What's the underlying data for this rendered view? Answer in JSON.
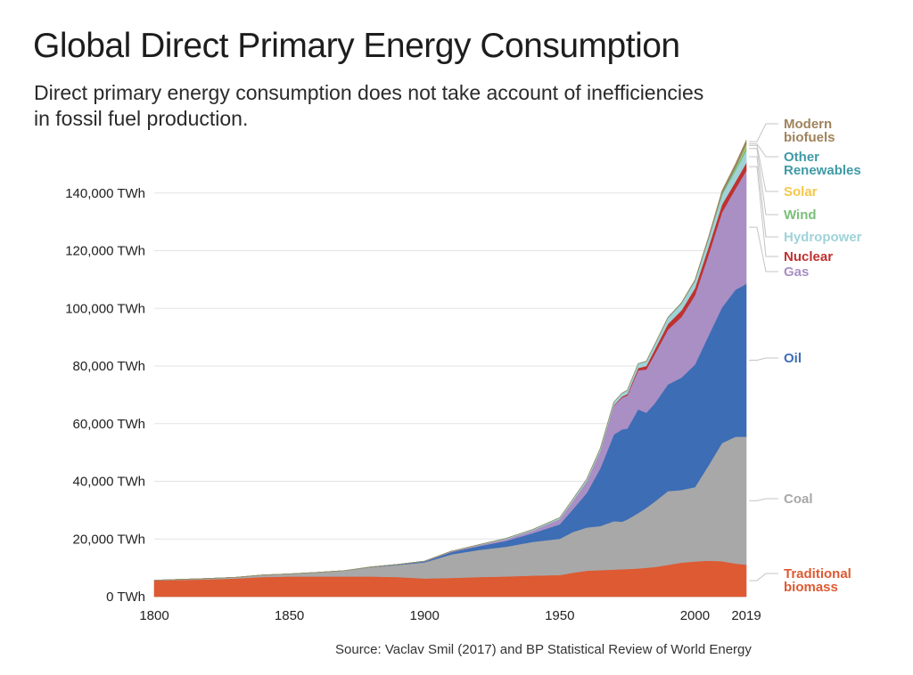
{
  "header": {
    "title": "Global Direct Primary Energy Consumption",
    "subtitle": "Direct primary energy consumption does not take account of inefficiencies in fossil fuel production."
  },
  "footer": {
    "source": "Source: Vaclav Smil (2017) and BP Statistical Review of World Energy"
  },
  "chart_data": {
    "type": "area",
    "stacked": true,
    "title": "Global Direct Primary Energy Consumption",
    "subtitle": "Direct primary energy consumption does not take account of inefficiencies in fossil fuel production.",
    "xlabel": "",
    "ylabel": "",
    "xlim": [
      1800,
      2019
    ],
    "ylim": [
      0,
      160000
    ],
    "x_ticks": [
      1800,
      1850,
      1900,
      1950,
      2000,
      2019
    ],
    "y_ticks": [
      0,
      20000,
      40000,
      60000,
      80000,
      100000,
      120000,
      140000
    ],
    "y_tick_labels": [
      "0 TWh",
      "20,000 TWh",
      "40,000 TWh",
      "60,000 TWh",
      "80,000 TWh",
      "100,000 TWh",
      "120,000 TWh",
      "140,000 TWh"
    ],
    "grid": true,
    "legend": "right, inline labels",
    "x": [
      1800,
      1810,
      1820,
      1830,
      1840,
      1850,
      1860,
      1870,
      1880,
      1890,
      1900,
      1910,
      1920,
      1930,
      1940,
      1950,
      1955,
      1960,
      1965,
      1970,
      1973,
      1975,
      1979,
      1982,
      1985,
      1990,
      1995,
      2000,
      2005,
      2010,
      2015,
      2019
    ],
    "series": [
      {
        "name": "Traditional biomass",
        "color": "#dd5a33",
        "values": [
          5600,
          5800,
          6000,
          6300,
          6800,
          7000,
          7000,
          7000,
          7000,
          6800,
          6300,
          6500,
          6800,
          7000,
          7300,
          7500,
          8300,
          9000,
          9200,
          9400,
          9500,
          9600,
          9800,
          10000,
          10300,
          11000,
          11800,
          12200,
          12500,
          12300,
          11500,
          11100
        ]
      },
      {
        "name": "Coal",
        "color": "#a8a8a8",
        "values": [
          100,
          200,
          300,
          400,
          700,
          900,
          1400,
          2000,
          3200,
          4200,
          5600,
          8200,
          9400,
          10300,
          11700,
          12600,
          14200,
          15000,
          15300,
          16800,
          16500,
          17200,
          19200,
          20800,
          22600,
          25600,
          25200,
          25800,
          33000,
          41000,
          44000,
          44400
        ]
      },
      {
        "name": "Oil",
        "color": "#3d6db5",
        "values": [
          0,
          0,
          0,
          0,
          0,
          0,
          0,
          0,
          100,
          200,
          300,
          800,
          1300,
          2000,
          3000,
          5000,
          8000,
          12000,
          20000,
          30000,
          32000,
          31500,
          36000,
          33000,
          34000,
          37000,
          39000,
          42500,
          45000,
          47000,
          51000,
          53000
        ]
      },
      {
        "name": "Gas",
        "color": "#a98fc4",
        "values": [
          0,
          0,
          0,
          0,
          0,
          0,
          0,
          0,
          0,
          0,
          100,
          200,
          300,
          600,
          900,
          1800,
          2800,
          4000,
          6000,
          10000,
          11000,
          11500,
          13500,
          15000,
          17000,
          19000,
          21000,
          24000,
          28000,
          33000,
          35000,
          39300
        ]
      },
      {
        "name": "Nuclear",
        "color": "#c0312f",
        "values": [
          0,
          0,
          0,
          0,
          0,
          0,
          0,
          0,
          0,
          0,
          0,
          0,
          0,
          0,
          0,
          0,
          0,
          10,
          50,
          200,
          400,
          500,
          800,
          1200,
          1600,
          2000,
          2300,
          2500,
          2700,
          2700,
          2500,
          2700
        ]
      },
      {
        "name": "Hydropower",
        "color": "#9fd3d9",
        "values": [
          0,
          0,
          0,
          0,
          0,
          0,
          0,
          0,
          0,
          0,
          50,
          100,
          200,
          300,
          400,
          500,
          700,
          800,
          900,
          1100,
          1200,
          1300,
          1500,
          1600,
          1700,
          2100,
          2400,
          2500,
          2800,
          3300,
          3700,
          4200
        ]
      },
      {
        "name": "Wind",
        "color": "#7bbf7b",
        "values": [
          0,
          0,
          0,
          0,
          0,
          0,
          0,
          0,
          0,
          0,
          0,
          0,
          0,
          0,
          0,
          0,
          0,
          0,
          0,
          0,
          0,
          0,
          0,
          0,
          0,
          0,
          10,
          30,
          100,
          350,
          830,
          1430
        ]
      },
      {
        "name": "Solar",
        "color": "#f2c84b",
        "values": [
          0,
          0,
          0,
          0,
          0,
          0,
          0,
          0,
          0,
          0,
          0,
          0,
          0,
          0,
          0,
          0,
          0,
          0,
          0,
          0,
          0,
          0,
          0,
          0,
          0,
          0,
          0,
          1,
          4,
          30,
          250,
          720
        ]
      },
      {
        "name": "Other Renewables",
        "color": "#3f9aa6",
        "values": [
          0,
          0,
          0,
          0,
          0,
          0,
          0,
          0,
          0,
          0,
          0,
          0,
          0,
          0,
          0,
          0,
          0,
          0,
          0,
          0,
          0,
          0,
          20,
          30,
          60,
          110,
          140,
          160,
          200,
          280,
          350,
          400
        ]
      },
      {
        "name": "Modern biofuels",
        "color": "#a0835b",
        "values": [
          0,
          0,
          0,
          0,
          0,
          0,
          0,
          0,
          0,
          0,
          0,
          0,
          0,
          0,
          0,
          0,
          0,
          0,
          0,
          0,
          0,
          0,
          0,
          0,
          0,
          50,
          100,
          200,
          400,
          800,
          1000,
          1100
        ]
      }
    ],
    "labels": [
      {
        "series": "Modern biofuels",
        "lines": [
          "Modern",
          "biofuels"
        ],
        "color": "#a0835b"
      },
      {
        "series": "Other Renewables",
        "lines": [
          "Other",
          "Renewables"
        ],
        "color": "#3f9aa6"
      },
      {
        "series": "Solar",
        "lines": [
          "Solar"
        ],
        "color": "#f2c84b"
      },
      {
        "series": "Wind",
        "lines": [
          "Wind"
        ],
        "color": "#7bbf7b"
      },
      {
        "series": "Hydropower",
        "lines": [
          "Hydropower"
        ],
        "color": "#9fd3d9"
      },
      {
        "series": "Nuclear",
        "lines": [
          "Nuclear"
        ],
        "color": "#c0312f"
      },
      {
        "series": "Gas",
        "lines": [
          "Gas"
        ],
        "color": "#a98fc4"
      },
      {
        "series": "Oil",
        "lines": [
          "Oil"
        ],
        "color": "#3d6db5"
      },
      {
        "series": "Coal",
        "lines": [
          "Coal"
        ],
        "color": "#a8a8a8"
      },
      {
        "series": "Traditional biomass",
        "lines": [
          "Traditional",
          "biomass"
        ],
        "color": "#dd5a33"
      }
    ]
  }
}
